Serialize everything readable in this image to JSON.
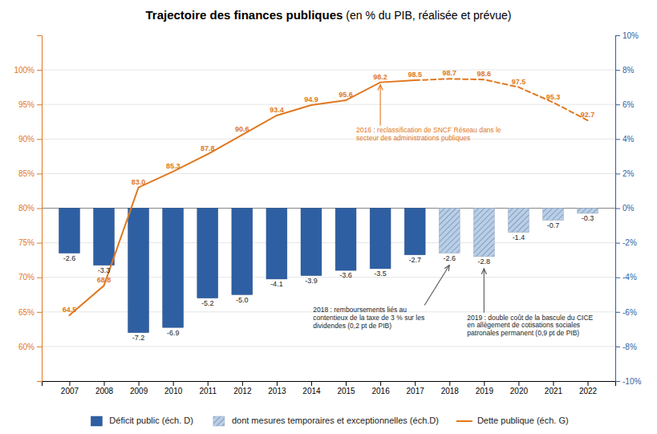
{
  "chart_data": {
    "type": "bar",
    "title": "Trajectoire des finances publiques",
    "subtitle": "(en % du PIB, réalisée et prévue)",
    "x": [
      2007,
      2008,
      2009,
      2010,
      2011,
      2012,
      2013,
      2014,
      2015,
      2016,
      2017,
      2018,
      2019,
      2020,
      2021,
      2022
    ],
    "xlim": [
      2006.2,
      2022.8
    ],
    "xticks": [
      2007,
      2008,
      2009,
      2010,
      2011,
      2012,
      2013,
      2014,
      2015,
      2016,
      2017,
      2018,
      2019,
      2020,
      2021,
      2022
    ],
    "ylim": [
      55,
      105
    ],
    "yticks": [
      {
        "value": 60,
        "label": "60%"
      },
      {
        "value": 65,
        "label": "65%"
      },
      {
        "value": 70,
        "label": "70%"
      },
      {
        "value": 75,
        "label": "75%"
      },
      {
        "value": 80,
        "label": "80%"
      },
      {
        "value": 85,
        "label": "85%"
      },
      {
        "value": 90,
        "label": "90%"
      },
      {
        "value": 95,
        "label": "95%"
      },
      {
        "value": 100,
        "label": "100%"
      }
    ],
    "y2lim": [
      -10,
      10
    ],
    "y2ticks": [
      {
        "value": -10,
        "label": "-10%"
      },
      {
        "value": -8,
        "label": "-8%"
      },
      {
        "value": -6,
        "label": "-6%"
      },
      {
        "value": -4,
        "label": "-4%"
      },
      {
        "value": -2,
        "label": "-2%"
      },
      {
        "value": 0,
        "label": "0%"
      },
      {
        "value": 2,
        "label": "2%"
      },
      {
        "value": 4,
        "label": "4%"
      },
      {
        "value": 6,
        "label": "6%"
      },
      {
        "value": 8,
        "label": "8%"
      },
      {
        "value": 10,
        "label": "10%"
      }
    ],
    "grid": true,
    "legend": "bottom",
    "data_labels": true,
    "series": [
      {
        "name": "Déficit public (éch. D)",
        "type": "bar",
        "axis": "y2",
        "color": "#2E5FA3",
        "values": [
          -2.6,
          -3.3,
          -7.2,
          -6.9,
          -5.2,
          -5.0,
          -4.1,
          -3.9,
          -3.6,
          -3.5,
          -2.7,
          null,
          null,
          null,
          null,
          null
        ],
        "value_labels": [
          "-2.6",
          "-3.3",
          "-7.2",
          "-6.9",
          "-5.2",
          "-5.0",
          "-4.1",
          "-3.9",
          "-3.6",
          "-3.5",
          "-2.7",
          null,
          null,
          null,
          null,
          null
        ]
      },
      {
        "name": "dont mesures temporaires et exceptionnelles (éch.D)",
        "type": "bar",
        "axis": "y2",
        "color": "#B8CFEA",
        "values": [
          null,
          null,
          null,
          null,
          null,
          null,
          null,
          null,
          null,
          null,
          null,
          -2.6,
          -2.8,
          -1.4,
          -0.7,
          -0.3
        ],
        "value_labels": [
          null,
          null,
          null,
          null,
          null,
          null,
          null,
          null,
          null,
          null,
          null,
          "-2.6",
          "-2.8",
          "-1.4",
          "-0.7",
          "-0.3"
        ]
      },
      {
        "name": "Dette publique (éch. G)",
        "type": "line",
        "color": "#E07820",
        "values": [
          64.5,
          68.8,
          83.0,
          85.3,
          87.8,
          90.6,
          93.4,
          94.9,
          95.6,
          98.2,
          98.5,
          98.7,
          98.6,
          97.5,
          95.3,
          92.7
        ],
        "value_labels": [
          "64.5",
          "68.8",
          "83.0",
          "85.3",
          "87.8",
          "90.6",
          "93.4",
          "94.9",
          "95.6",
          "98.2",
          "98.5",
          "98.7",
          "98.6",
          "97.5",
          "95.3",
          "92.7"
        ]
      }
    ],
    "annotations": [
      {
        "text": "2016 : reclassification de SNCF Réseau dans le\nsecteur des administrations publiques",
        "x": 2016,
        "y": 98.2,
        "axis": "y"
      },
      {
        "text": "2018 : remboursements liés au\ncontentieux de la taxe de 3 % sur les\ndividendes (0,2 pt de PIB)",
        "x": 2018,
        "y": -2.6,
        "axis": "y2"
      },
      {
        "text": "2019 : double coût de la bascule du CICE\nen allègement de cotisations sociales\npatronales permanent (0,9 pt de PIB)",
        "x": 2019,
        "y": -2.8,
        "axis": "y2"
      }
    ]
  }
}
